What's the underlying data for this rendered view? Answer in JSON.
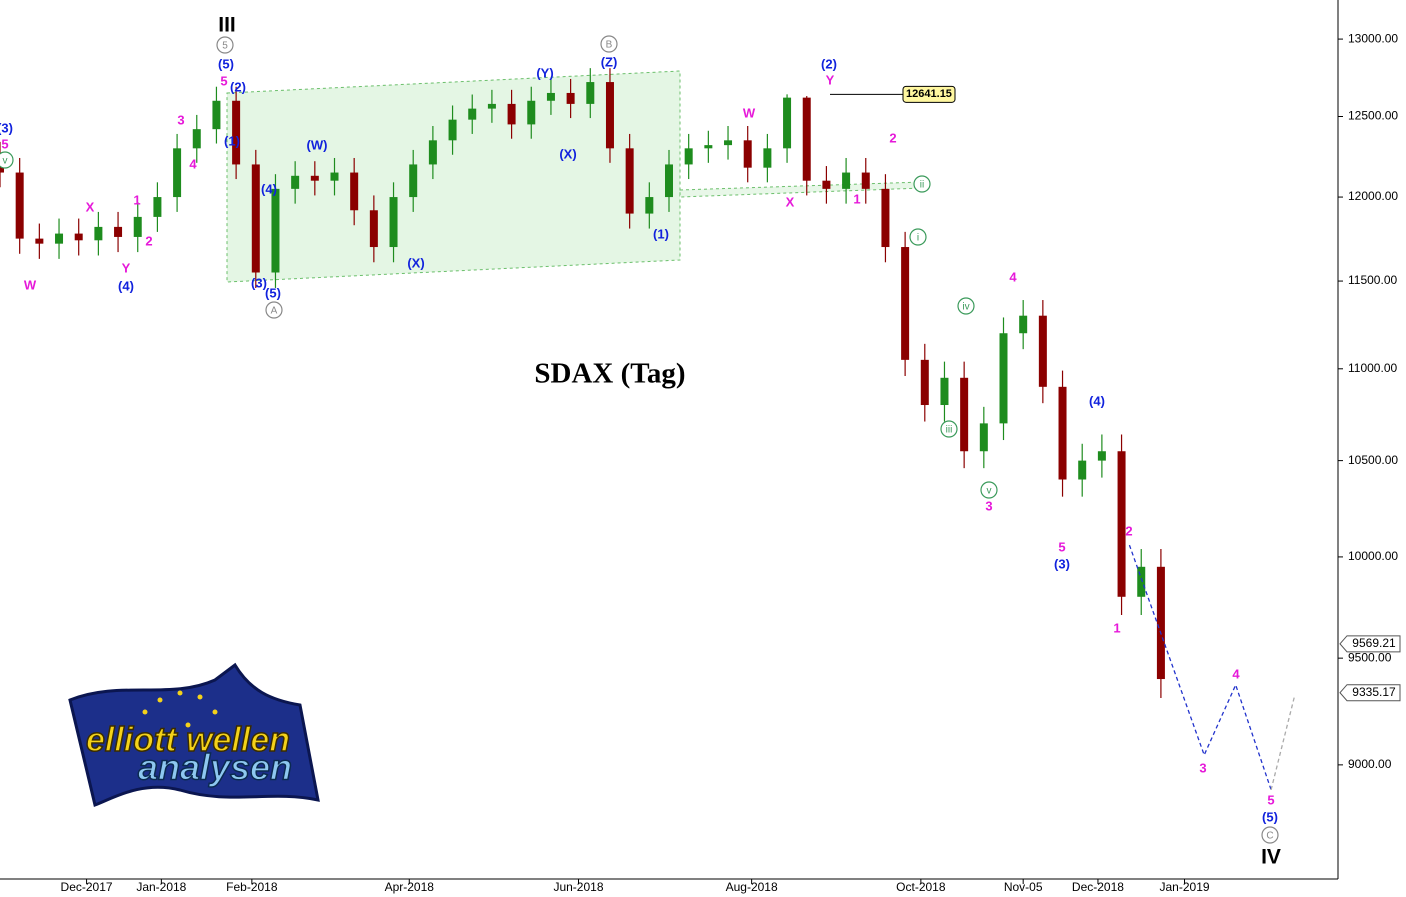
{
  "chart_data": {
    "type": "candlestick",
    "title": "SDAX (Tag)",
    "log_scale": true,
    "ylim": [
      8490,
      13260
    ],
    "yticks": [
      {
        "value": 9000,
        "label": "9000.00"
      },
      {
        "value": 9500,
        "label": "9500.00"
      },
      {
        "value": 10000,
        "label": "10000.00"
      },
      {
        "value": 10500,
        "label": "10500.00"
      },
      {
        "value": 11000,
        "label": "11000.00"
      },
      {
        "value": 11500,
        "label": "11500.00"
      },
      {
        "value": 12000,
        "label": "12000.00"
      },
      {
        "value": 12500,
        "label": "12500.00"
      },
      {
        "value": 13000,
        "label": "13000.00"
      }
    ],
    "xlim": [
      0,
      340
    ],
    "xticks": [
      {
        "value": 22,
        "label": "Dec-2017"
      },
      {
        "value": 41,
        "label": "Jan-2018"
      },
      {
        "value": 64,
        "label": "Feb-2018"
      },
      {
        "value": 104,
        "label": "Apr-2018"
      },
      {
        "value": 147,
        "label": "Jun-2018"
      },
      {
        "value": 191,
        "label": "Aug-2018"
      },
      {
        "value": 234,
        "label": "Oct-2018"
      },
      {
        "value": 260,
        "label": "Nov-05"
      },
      {
        "value": 279,
        "label": "Dec-2018"
      },
      {
        "value": 301,
        "label": "Jan-2019"
      }
    ],
    "up_color": "#1e8c1e",
    "down_color": "#8b0000",
    "x": [
      0,
      5,
      10,
      15,
      20,
      25,
      30,
      35,
      40,
      45,
      50,
      55,
      60,
      65,
      70,
      75,
      80,
      85,
      90,
      95,
      100,
      105,
      110,
      115,
      120,
      125,
      130,
      135,
      140,
      145,
      150,
      155,
      160,
      165,
      170,
      175,
      180,
      185,
      190,
      195,
      200,
      205,
      210,
      215,
      220,
      225,
      230,
      235,
      240,
      245,
      250,
      255,
      260,
      265,
      270,
      275,
      280,
      285,
      290,
      295
    ],
    "open": [
      12250,
      12150,
      11750,
      11720,
      11780,
      11740,
      11820,
      11760,
      11880,
      12000,
      12300,
      12420,
      12600,
      12200,
      11550,
      12050,
      12130,
      12100,
      12150,
      11920,
      11700,
      12000,
      12200,
      12350,
      12480,
      12550,
      12580,
      12450,
      12600,
      12650,
      12580,
      12720,
      12300,
      11900,
      12000,
      12200,
      12300,
      12320,
      12350,
      12180,
      12300,
      12620,
      12100,
      12050,
      12150,
      12050,
      11700,
      11050,
      10800,
      10950,
      10550,
      10700,
      11200,
      11300,
      10900,
      10400,
      10500,
      10550,
      9800,
      9950
    ],
    "high": [
      12340,
      12240,
      11840,
      11870,
      11870,
      11910,
      11910,
      11970,
      12090,
      12390,
      12510,
      12690,
      12690,
      12290,
      12140,
      12220,
      12220,
      12240,
      12240,
      12010,
      12090,
      12290,
      12440,
      12570,
      12640,
      12670,
      12670,
      12690,
      12740,
      12740,
      12810,
      12810,
      12390,
      12090,
      12290,
      12390,
      12410,
      12440,
      12440,
      12390,
      12641.15,
      12630,
      12190,
      12240,
      12240,
      12140,
      11790,
      11140,
      11040,
      11040,
      10790,
      11290,
      11390,
      11390,
      10990,
      10590,
      10640,
      10640,
      10040,
      10040
    ],
    "low": [
      12060,
      11660,
      11630,
      11630,
      11650,
      11650,
      11670,
      11670,
      11790,
      11910,
      12210,
      12330,
      12110,
      11460,
      11460,
      11960,
      12010,
      12010,
      11830,
      11610,
      11610,
      11910,
      12110,
      12260,
      12390,
      12460,
      12360,
      12360,
      12510,
      12490,
      12490,
      12210,
      11810,
      11810,
      11910,
      12110,
      12210,
      12230,
      12090,
      12090,
      12210,
      12010,
      11960,
      11960,
      11960,
      11610,
      10960,
      10710,
      10710,
      10460,
      10460,
      10610,
      11110,
      10810,
      10310,
      10310,
      10410,
      9710,
      9710,
      9310
    ],
    "close": [
      12150,
      11750,
      11720,
      11780,
      11740,
      11820,
      11760,
      11880,
      12000,
      12300,
      12420,
      12600,
      12200,
      11550,
      12050,
      12130,
      12100,
      12150,
      11920,
      11700,
      12000,
      12200,
      12350,
      12480,
      12550,
      12580,
      12450,
      12600,
      12650,
      12580,
      12720,
      12300,
      11900,
      12000,
      12200,
      12300,
      12320,
      12350,
      12180,
      12300,
      12620,
      12100,
      12050,
      12150,
      12050,
      11700,
      11050,
      10800,
      10950,
      10550,
      10700,
      11200,
      11300,
      10900,
      10400,
      10500,
      10550,
      9800,
      9950,
      9400
    ],
    "projection": {
      "color": "#2233cc",
      "x": [
        287,
        306,
        314,
        323
      ],
      "values": [
        10060,
        9045,
        9372,
        8887
      ]
    },
    "continuation": {
      "color": "#aaaaaa",
      "x": [
        323,
        329
      ],
      "values": [
        8887,
        9322
      ]
    },
    "peak_label": 12641.15,
    "price_labels": [
      9569.21,
      9335.17
    ],
    "wave_labels": [
      "III",
      "5",
      "(5)",
      "5",
      "(2)",
      "(1)",
      "3",
      "4",
      "(3)",
      "5",
      "v",
      "X",
      "1",
      "2",
      "Y",
      "(4)",
      "W",
      "(4)",
      "(3)",
      "(5)",
      "A",
      "(W)",
      "(X)",
      "(Y)",
      "(X)",
      "B",
      "(Z)",
      "(1)",
      "W",
      "X",
      "(2)",
      "Y",
      "2",
      "1",
      "ii",
      "i",
      "iv",
      "4",
      "iii",
      "v",
      "3",
      "5",
      "(3)",
      "(4)",
      "2",
      "1",
      "3",
      "4",
      "5",
      "(5)",
      "C",
      "IV"
    ],
    "logo": [
      "elliott wellen",
      "analysen"
    ]
  }
}
